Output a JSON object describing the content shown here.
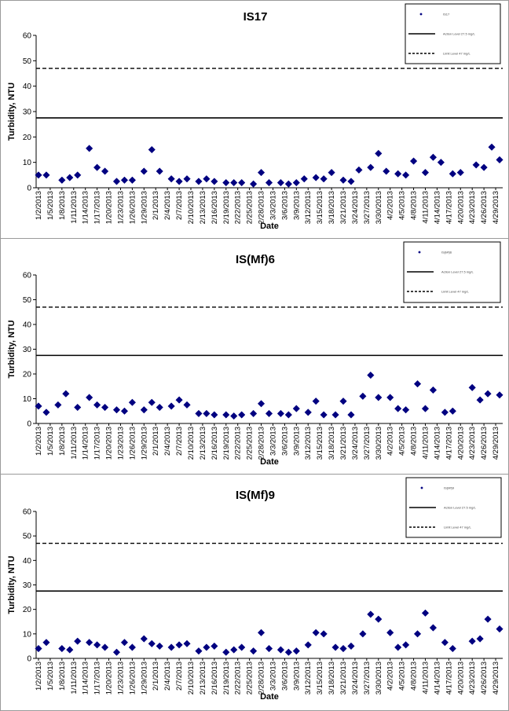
{
  "chart_data": [
    {
      "type": "scatter",
      "title": "IS17",
      "xlabel": "Date",
      "ylabel": "Turbidity, NTU",
      "ylim": [
        0,
        60
      ],
      "yticks": [
        0,
        10,
        20,
        30,
        40,
        50,
        60
      ],
      "x_tick_labels": [
        "1/2/2013",
        "1/5/2013",
        "1/8/2013",
        "1/11/2013",
        "1/14/2013",
        "1/17/2013",
        "1/20/2013",
        "1/23/2013",
        "1/26/2013",
        "1/29/2013",
        "2/1/2013",
        "2/4/2013",
        "2/7/2013",
        "2/10/2013",
        "2/13/2013",
        "2/16/2013",
        "2/19/2013",
        "2/22/2013",
        "2/25/2013",
        "2/28/2013",
        "3/3/2013",
        "3/6/2013",
        "3/9/2013",
        "3/12/2013",
        "3/15/2013",
        "3/18/2013",
        "3/21/2013",
        "3/24/2013",
        "3/27/2013",
        "3/30/2013",
        "4/2/2013",
        "4/5/2013",
        "4/8/2013",
        "4/11/2013",
        "4/14/2013",
        "4/17/2013",
        "4/20/2013",
        "4/23/2013",
        "4/26/2013",
        "4/29/2013"
      ],
      "series": [
        {
          "name": "IS17",
          "marker": "diamond",
          "color": "#000080",
          "x": [
            "1/2/2013",
            "1/4/2013",
            "1/8/2013",
            "1/10/2013",
            "1/12/2013",
            "1/15/2013",
            "1/17/2013",
            "1/19/2013",
            "1/22/2013",
            "1/24/2013",
            "1/26/2013",
            "1/29/2013",
            "1/31/2013",
            "2/2/2013",
            "2/5/2013",
            "2/7/2013",
            "2/9/2013",
            "2/12/2013",
            "2/14/2013",
            "2/16/2013",
            "2/19/2013",
            "2/21/2013",
            "2/23/2013",
            "2/26/2013",
            "2/28/2013",
            "3/2/2013",
            "3/5/2013",
            "3/7/2013",
            "3/9/2013",
            "3/11/2013",
            "3/14/2013",
            "3/16/2013",
            "3/18/2013",
            "3/21/2013",
            "3/23/2013",
            "3/25/2013",
            "3/28/2013",
            "3/30/2013",
            "4/1/2013",
            "4/4/2013",
            "4/6/2013",
            "4/8/2013",
            "4/11/2013",
            "4/13/2013",
            "4/15/2013",
            "4/18/2013",
            "4/20/2013",
            "4/24/2013",
            "4/26/2013",
            "4/28/2013",
            "4/30/2013"
          ],
          "y": [
            5,
            5,
            3,
            4,
            5,
            15.5,
            8,
            6.5,
            2.5,
            3,
            3,
            6.5,
            15,
            6.5,
            3.5,
            2.5,
            3.5,
            2.5,
            3.5,
            2.5,
            2,
            2,
            2,
            1.5,
            6,
            2,
            2,
            1.5,
            2,
            3.5,
            4,
            3.5,
            6,
            3,
            2.5,
            7,
            8,
            13.5,
            6.5,
            5.5,
            5,
            10.5,
            6,
            12,
            10,
            5.5,
            6,
            9,
            8,
            16,
            11
          ]
        }
      ],
      "reference_lines": [
        {
          "name": "Action Level 27.5 mg/L",
          "value": 27.5,
          "style": "solid"
        },
        {
          "name": "Limit Level 47 mg/L",
          "value": 47,
          "style": "dashed"
        }
      ],
      "legend_position": "top-right",
      "grid": false
    },
    {
      "type": "scatter",
      "title": "IS(Mf)6",
      "xlabel": "Date",
      "ylabel": "Turbidity, NTU",
      "ylim": [
        0,
        60
      ],
      "yticks": [
        0,
        10,
        20,
        30,
        40,
        50,
        60
      ],
      "x_tick_labels": [
        "1/2/2013",
        "1/5/2013",
        "1/8/2013",
        "1/11/2013",
        "1/14/2013",
        "1/17/2013",
        "1/20/2013",
        "1/23/2013",
        "1/26/2013",
        "1/29/2013",
        "2/1/2013",
        "2/4/2013",
        "2/7/2013",
        "2/10/2013",
        "2/13/2013",
        "2/16/2013",
        "2/19/2013",
        "2/22/2013",
        "2/25/2013",
        "2/28/2013",
        "3/3/2013",
        "3/6/2013",
        "3/9/2013",
        "3/12/2013",
        "3/15/2013",
        "3/18/2013",
        "3/21/2013",
        "3/24/2013",
        "3/27/2013",
        "3/30/2013",
        "4/2/2013",
        "4/5/2013",
        "4/8/2013",
        "4/11/2013",
        "4/14/2013",
        "4/17/2013",
        "4/20/2013",
        "4/23/2013",
        "4/26/2013",
        "4/29/2013"
      ],
      "series": [
        {
          "name": "IS(Mf)6",
          "marker": "diamond",
          "color": "#000080",
          "x": [
            "1/2/2013",
            "1/4/2013",
            "1/7/2013",
            "1/9/2013",
            "1/12/2013",
            "1/15/2013",
            "1/17/2013",
            "1/19/2013",
            "1/22/2013",
            "1/24/2013",
            "1/26/2013",
            "1/29/2013",
            "1/31/2013",
            "2/2/2013",
            "2/5/2013",
            "2/7/2013",
            "2/9/2013",
            "2/12/2013",
            "2/14/2013",
            "2/16/2013",
            "2/19/2013",
            "2/21/2013",
            "2/23/2013",
            "2/26/2013",
            "2/28/2013",
            "3/2/2013",
            "3/5/2013",
            "3/7/2013",
            "3/9/2013",
            "3/12/2013",
            "3/14/2013",
            "3/16/2013",
            "3/19/2013",
            "3/21/2013",
            "3/23/2013",
            "3/26/2013",
            "3/28/2013",
            "3/30/2013",
            "4/2/2013",
            "4/4/2013",
            "4/6/2013",
            "4/9/2013",
            "4/11/2013",
            "4/13/2013",
            "4/16/2013",
            "4/18/2013",
            "4/23/2013",
            "4/25/2013",
            "4/27/2013",
            "4/30/2013"
          ],
          "y": [
            7,
            4.5,
            7.5,
            12,
            6.5,
            10.5,
            7.5,
            6.5,
            5.5,
            5,
            8.5,
            5.5,
            8.5,
            6.5,
            7,
            9.5,
            7.5,
            4,
            4,
            3.5,
            3.5,
            3,
            3.5,
            4,
            8,
            4,
            4,
            3.5,
            6,
            4.5,
            9,
            3.5,
            3.5,
            9,
            3.5,
            11,
            19.5,
            10.5,
            10.5,
            6,
            5.5,
            16,
            6,
            13.5,
            4.5,
            5,
            14.5,
            9.5,
            12,
            11.5
          ]
        }
      ],
      "reference_lines": [
        {
          "name": "Action Level 27.5 mg/L",
          "value": 27.5,
          "style": "solid"
        },
        {
          "name": "Limit Level 47 mg/L",
          "value": 47,
          "style": "dashed"
        }
      ],
      "legend_position": "top-right",
      "grid": false
    },
    {
      "type": "scatter",
      "title": "IS(Mf)9",
      "xlabel": "Date",
      "ylabel": "Turbidity, NTU",
      "ylim": [
        0,
        60
      ],
      "yticks": [
        0,
        10,
        20,
        30,
        40,
        50,
        60
      ],
      "x_tick_labels": [
        "1/2/2013",
        "1/5/2013",
        "1/8/2013",
        "1/11/2013",
        "1/14/2013",
        "1/17/2013",
        "1/20/2013",
        "1/23/2013",
        "1/26/2013",
        "1/29/2013",
        "2/1/2013",
        "2/4/2013",
        "2/7/2013",
        "2/10/2013",
        "2/13/2013",
        "2/16/2013",
        "2/19/2013",
        "2/22/2013",
        "2/25/2013",
        "2/28/2013",
        "3/3/2013",
        "3/6/2013",
        "3/9/2013",
        "3/12/2013",
        "3/15/2013",
        "3/18/2013",
        "3/21/2013",
        "3/24/2013",
        "3/27/2013",
        "3/30/2013",
        "4/2/2013",
        "4/5/2013",
        "4/8/2013",
        "4/11/2013",
        "4/14/2013",
        "4/17/2013",
        "4/20/2013",
        "4/23/2013",
        "4/26/2013",
        "4/29/2013"
      ],
      "series": [
        {
          "name": "IS(Mf)9",
          "marker": "diamond",
          "color": "#000080",
          "x": [
            "1/2/2013",
            "1/4/2013",
            "1/8/2013",
            "1/10/2013",
            "1/12/2013",
            "1/15/2013",
            "1/17/2013",
            "1/19/2013",
            "1/22/2013",
            "1/24/2013",
            "1/26/2013",
            "1/29/2013",
            "1/31/2013",
            "2/2/2013",
            "2/5/2013",
            "2/7/2013",
            "2/9/2013",
            "2/12/2013",
            "2/14/2013",
            "2/16/2013",
            "2/19/2013",
            "2/21/2013",
            "2/23/2013",
            "2/26/2013",
            "2/28/2013",
            "3/2/2013",
            "3/5/2013",
            "3/7/2013",
            "3/9/2013",
            "3/12/2013",
            "3/14/2013",
            "3/16/2013",
            "3/19/2013",
            "3/21/2013",
            "3/23/2013",
            "3/26/2013",
            "3/28/2013",
            "3/30/2013",
            "4/2/2013",
            "4/4/2013",
            "4/6/2013",
            "4/9/2013",
            "4/11/2013",
            "4/13/2013",
            "4/16/2013",
            "4/18/2013",
            "4/23/2013",
            "4/25/2013",
            "4/27/2013",
            "4/30/2013"
          ],
          "y": [
            4,
            6.5,
            4,
            3.5,
            7,
            6.5,
            5.5,
            4.5,
            2.5,
            6.5,
            4.5,
            8,
            6,
            5,
            4.5,
            5.5,
            6,
            3,
            4.5,
            5,
            2.5,
            3.5,
            4.5,
            3,
            10.5,
            4,
            3.5,
            2.5,
            3,
            5.5,
            10.5,
            10,
            4.5,
            4,
            5,
            10,
            18,
            16,
            10.5,
            4.5,
            5.5,
            10,
            18.5,
            12.5,
            6.5,
            4,
            7,
            8,
            16,
            12
          ]
        }
      ],
      "reference_lines": [
        {
          "name": "Action Level 27.5 mg/L",
          "value": 27.5,
          "style": "solid"
        },
        {
          "name": "Limit Level 47 mg/L",
          "value": 47,
          "style": "dashed"
        }
      ],
      "legend_position": "top-right",
      "grid": false
    }
  ]
}
